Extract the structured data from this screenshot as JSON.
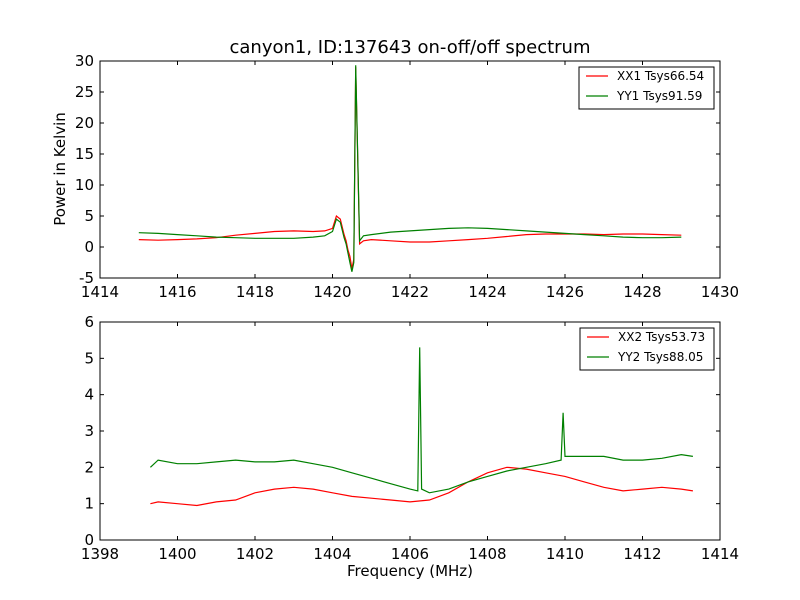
{
  "chart_data": [
    {
      "type": "line",
      "title": "canyon1, ID:137643 on-off/off spectrum",
      "xlabel": "",
      "ylabel": "Power in Kelvin",
      "xlim": [
        1414,
        1430
      ],
      "ylim": [
        -5,
        30
      ],
      "xticks": [
        1414,
        1416,
        1418,
        1420,
        1422,
        1424,
        1426,
        1428,
        1430
      ],
      "yticks": [
        -5,
        0,
        5,
        10,
        15,
        20,
        25,
        30
      ],
      "legend_position": "top-right",
      "grid": false,
      "series": [
        {
          "name": "XX1 Tsys66.54",
          "color": "#ff0000",
          "x": [
            1415.0,
            1415.5,
            1416.0,
            1416.5,
            1417.0,
            1417.5,
            1418.0,
            1418.5,
            1419.0,
            1419.5,
            1419.8,
            1420.0,
            1420.1,
            1420.2,
            1420.3,
            1420.35,
            1420.4,
            1420.45,
            1420.5,
            1420.55,
            1420.6,
            1420.7,
            1420.8,
            1421.0,
            1421.5,
            1422.0,
            1422.5,
            1423.0,
            1423.5,
            1424.0,
            1424.5,
            1425.0,
            1425.5,
            1426.0,
            1426.5,
            1427.0,
            1427.5,
            1428.0,
            1428.5,
            1429.0
          ],
          "y": [
            1.2,
            1.1,
            1.2,
            1.3,
            1.5,
            1.9,
            2.2,
            2.5,
            2.6,
            2.5,
            2.6,
            3.0,
            5.0,
            4.5,
            2.0,
            1.0,
            -0.5,
            -1.5,
            -3.5,
            -2.0,
            29.0,
            0.5,
            1.0,
            1.2,
            1.0,
            0.8,
            0.8,
            1.0,
            1.2,
            1.4,
            1.7,
            2.0,
            2.1,
            2.1,
            2.1,
            2.0,
            2.1,
            2.1,
            2.0,
            1.9
          ]
        },
        {
          "name": "YY1 Tsys91.59",
          "color": "#008000",
          "x": [
            1415.0,
            1415.5,
            1416.0,
            1416.5,
            1417.0,
            1417.5,
            1418.0,
            1418.5,
            1419.0,
            1419.5,
            1419.8,
            1420.0,
            1420.1,
            1420.2,
            1420.3,
            1420.35,
            1420.4,
            1420.45,
            1420.5,
            1420.55,
            1420.6,
            1420.7,
            1420.8,
            1421.0,
            1421.5,
            1422.0,
            1422.5,
            1423.0,
            1423.5,
            1424.0,
            1424.5,
            1425.0,
            1425.5,
            1426.0,
            1426.5,
            1427.0,
            1427.5,
            1428.0,
            1428.5,
            1429.0
          ],
          "y": [
            2.3,
            2.2,
            2.0,
            1.8,
            1.6,
            1.5,
            1.4,
            1.4,
            1.4,
            1.6,
            1.8,
            2.5,
            4.5,
            4.0,
            1.5,
            0.5,
            -1.0,
            -2.5,
            -4.0,
            -2.5,
            29.3,
            1.0,
            1.8,
            2.0,
            2.4,
            2.6,
            2.8,
            3.0,
            3.1,
            3.0,
            2.8,
            2.6,
            2.4,
            2.2,
            2.0,
            1.8,
            1.6,
            1.5,
            1.5,
            1.6
          ]
        }
      ]
    },
    {
      "type": "line",
      "title": "",
      "xlabel": "Frequency (MHz)",
      "ylabel": "",
      "xlim": [
        1398,
        1414
      ],
      "ylim": [
        0,
        6
      ],
      "xticks": [
        1398,
        1400,
        1402,
        1404,
        1406,
        1408,
        1410,
        1412,
        1414
      ],
      "yticks": [
        0,
        1,
        2,
        3,
        4,
        5,
        6
      ],
      "legend_position": "top-right",
      "grid": false,
      "series": [
        {
          "name": "XX2 Tsys53.73",
          "color": "#ff0000",
          "x": [
            1399.3,
            1399.5,
            1400.0,
            1400.5,
            1401.0,
            1401.5,
            1402.0,
            1402.5,
            1403.0,
            1403.5,
            1404.0,
            1404.5,
            1405.0,
            1405.5,
            1406.0,
            1406.5,
            1407.0,
            1407.5,
            1408.0,
            1408.5,
            1409.0,
            1409.5,
            1410.0,
            1410.5,
            1411.0,
            1411.5,
            1412.0,
            1412.5,
            1413.0,
            1413.3
          ],
          "y": [
            1.0,
            1.05,
            1.0,
            0.95,
            1.05,
            1.1,
            1.3,
            1.4,
            1.45,
            1.4,
            1.3,
            1.2,
            1.15,
            1.1,
            1.05,
            1.1,
            1.3,
            1.6,
            1.85,
            2.0,
            1.95,
            1.85,
            1.75,
            1.6,
            1.45,
            1.35,
            1.4,
            1.45,
            1.4,
            1.35
          ]
        },
        {
          "name": "YY2 Tsys88.05",
          "color": "#008000",
          "x": [
            1399.3,
            1399.5,
            1400.0,
            1400.5,
            1401.0,
            1401.5,
            1402.0,
            1402.5,
            1403.0,
            1403.5,
            1404.0,
            1404.5,
            1405.0,
            1405.5,
            1406.0,
            1406.2,
            1406.25,
            1406.3,
            1406.5,
            1407.0,
            1407.5,
            1408.0,
            1408.5,
            1409.0,
            1409.5,
            1409.9,
            1409.95,
            1410.0,
            1410.5,
            1411.0,
            1411.5,
            1412.0,
            1412.5,
            1413.0,
            1413.3
          ],
          "y": [
            2.0,
            2.2,
            2.1,
            2.1,
            2.15,
            2.2,
            2.15,
            2.15,
            2.2,
            2.1,
            2.0,
            1.85,
            1.7,
            1.55,
            1.4,
            1.35,
            5.3,
            1.4,
            1.3,
            1.4,
            1.6,
            1.75,
            1.9,
            2.0,
            2.1,
            2.2,
            3.5,
            2.3,
            2.3,
            2.3,
            2.2,
            2.2,
            2.25,
            2.35,
            2.3
          ]
        }
      ]
    }
  ]
}
